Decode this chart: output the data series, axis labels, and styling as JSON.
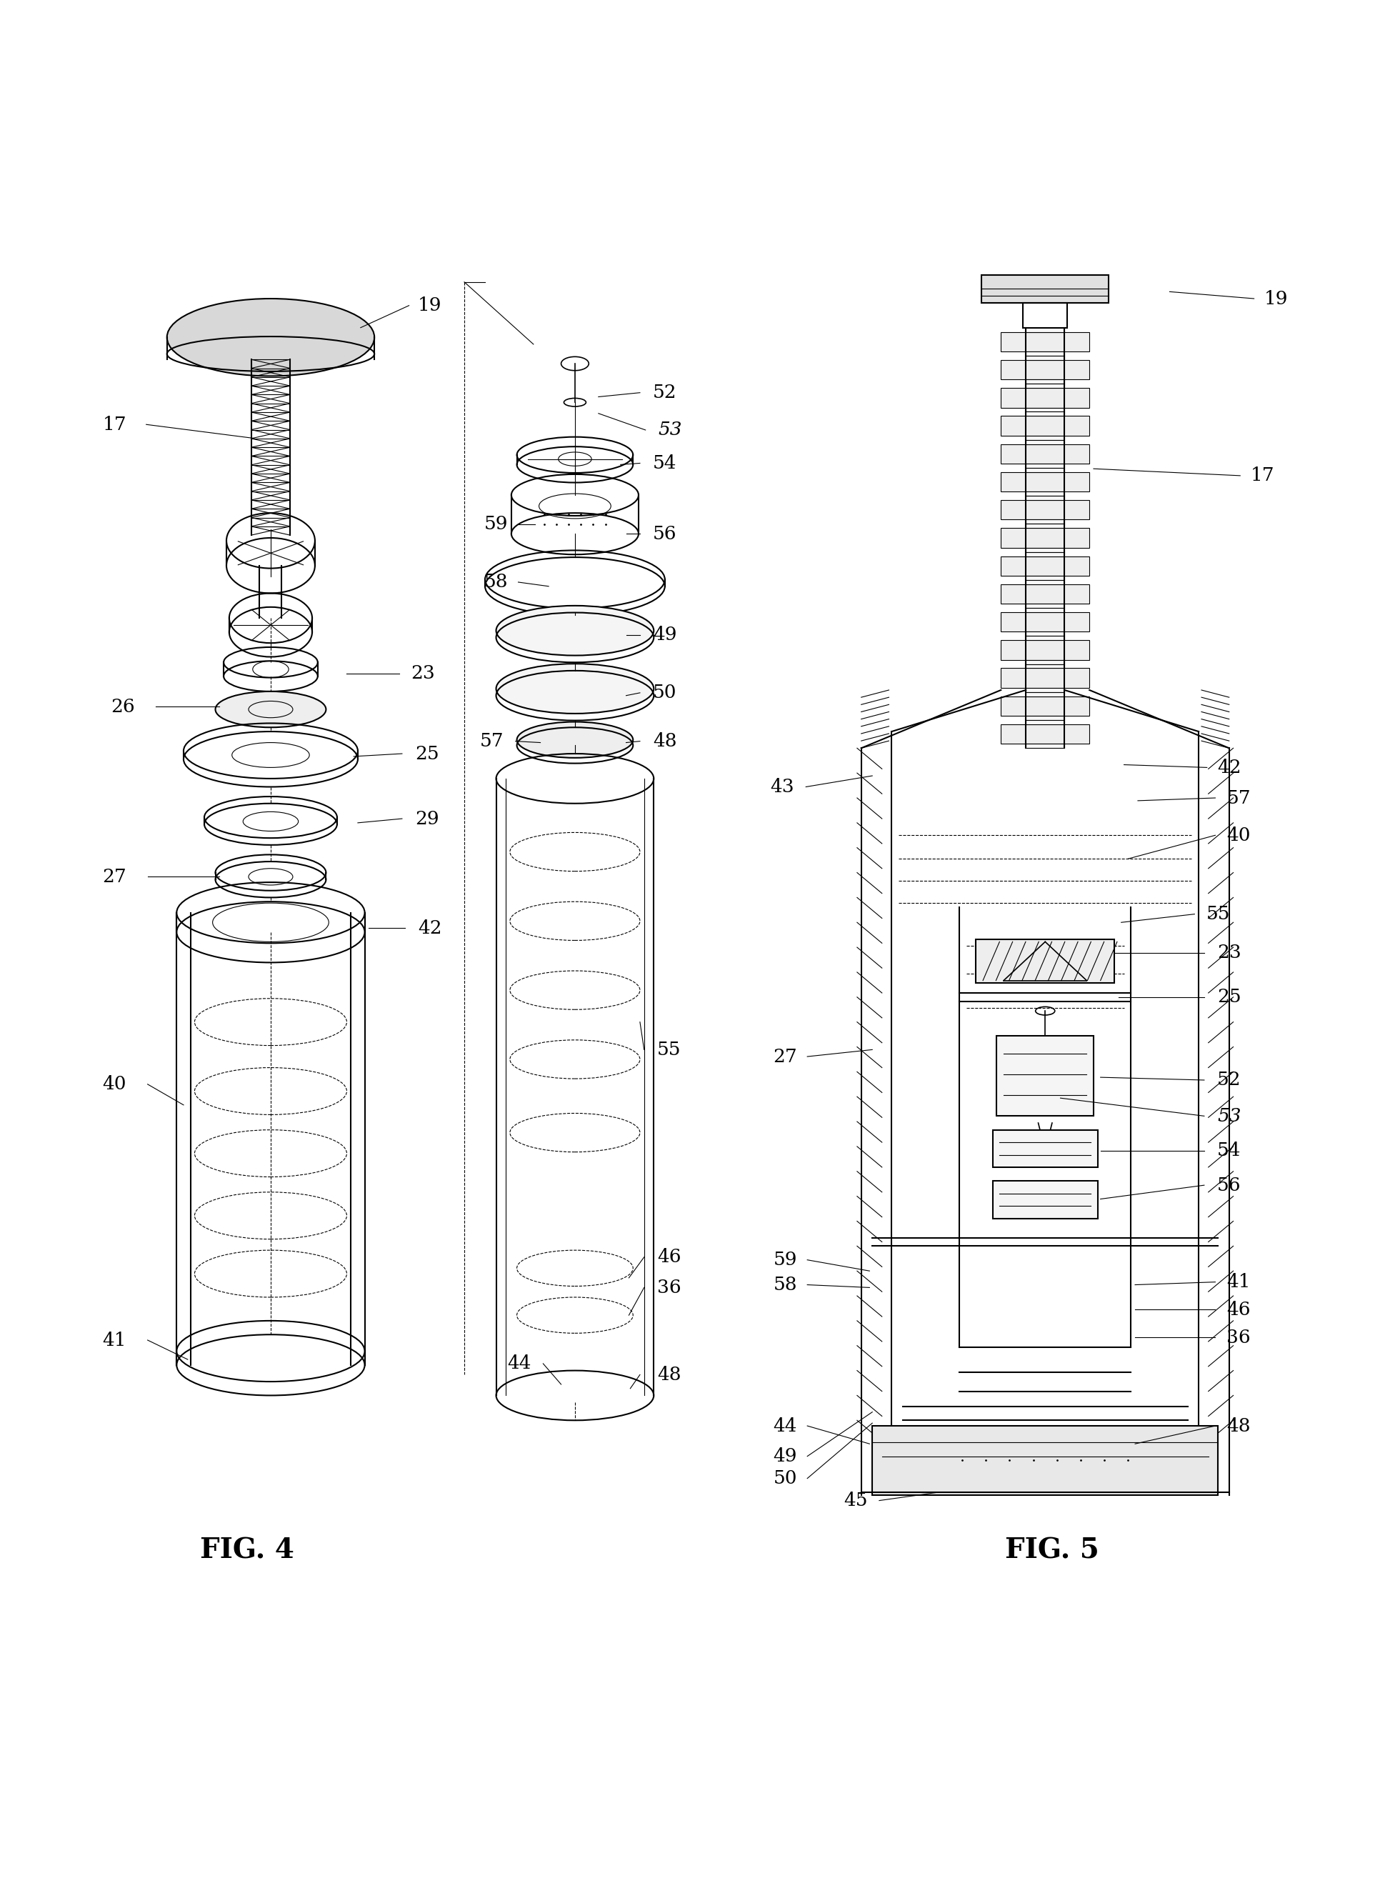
{
  "background_color": "#ffffff",
  "fig_width": 19.39,
  "fig_height": 26.29,
  "line_color": "#000000",
  "fig4_label": "FIG. 4",
  "fig5_label": "FIG. 5"
}
